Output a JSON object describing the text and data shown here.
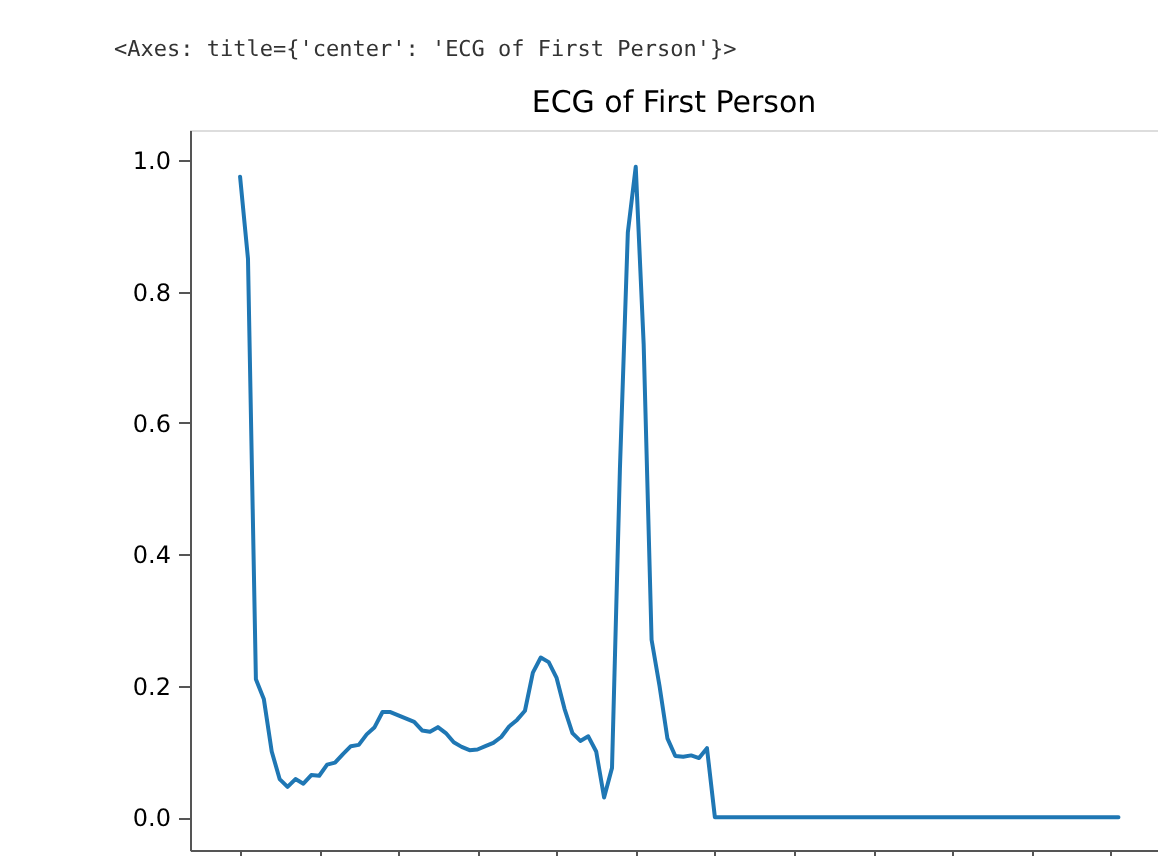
{
  "chart_data": {
    "type": "line",
    "title": "ECG of First Person",
    "annotations": [
      "<Axes: title={'center': 'ECG of First Person'}>"
    ],
    "categories": [
      null,
      null,
      null,
      null,
      null,
      null,
      null,
      null,
      null,
      null,
      null,
      null,
      null,
      null,
      null,
      null,
      null,
      null,
      null,
      null,
      null,
      null,
      null,
      null,
      null,
      null,
      null,
      null,
      null,
      null,
      null,
      null,
      null,
      null,
      null,
      null,
      null,
      null,
      null,
      null,
      null,
      null,
      null,
      null,
      null,
      null,
      null,
      null,
      null,
      null,
      null,
      null,
      null,
      null,
      null,
      null,
      null,
      null,
      null,
      null,
      null,
      null,
      null,
      null,
      null,
      null,
      null,
      null,
      null,
      null,
      null,
      null,
      null,
      null,
      null,
      null,
      null,
      null,
      null,
      null,
      null,
      null,
      null,
      null,
      null,
      null,
      null,
      null,
      null,
      null,
      null,
      null,
      null,
      null,
      null,
      null,
      null,
      null,
      null,
      null,
      null,
      null,
      null,
      null,
      null,
      null,
      null,
      null,
      null,
      null,
      null,
      null
    ],
    "series": [
      {
        "color": "#1f77b4",
        "values": [
          0.975,
          0.85,
          0.21,
          0.18,
          0.1,
          0.058,
          0.046,
          0.058,
          0.051,
          0.064,
          0.063,
          0.08,
          0.083,
          0.096,
          0.108,
          0.11,
          0.126,
          0.137,
          0.16,
          0.16,
          0.155,
          0.15,
          0.145,
          0.132,
          0.13,
          0.137,
          0.128,
          0.114,
          0.107,
          0.102,
          0.103,
          0.108,
          0.113,
          0.122,
          0.138,
          0.148,
          0.162,
          0.22,
          0.243,
          0.236,
          0.212,
          0.165,
          0.128,
          0.116,
          0.123,
          0.1,
          0.03,
          0.075,
          0.53,
          0.89,
          0.99,
          0.72,
          0.27,
          0.2,
          0.12,
          0.093,
          0.092,
          0.094,
          0.09,
          0.105,
          0.0,
          0,
          0,
          0,
          0,
          0,
          0,
          0,
          0,
          0,
          0,
          0,
          0,
          0,
          0,
          0,
          0,
          0,
          0,
          0,
          0,
          0,
          0,
          0,
          0,
          0,
          0,
          0,
          0,
          0,
          0,
          0,
          0,
          0,
          0,
          0,
          0,
          0,
          0,
          0,
          0,
          0,
          0,
          0,
          0,
          0,
          0,
          0,
          0,
          0,
          0,
          0
        ]
      }
    ],
    "ylim": [
      -0.05,
      1.046
    ],
    "yticks": [
      {
        "value": 0,
        "label": "0.0"
      },
      {
        "value": 0.2,
        "label": "0.2"
      },
      {
        "value": 0.4,
        "label": "0.4"
      },
      {
        "value": 0.6,
        "label": "0.6"
      },
      {
        "value": 0.8,
        "label": "0.8"
      },
      {
        "value": 1.0,
        "label": "1.0"
      }
    ],
    "tick_labels": "y",
    "grid": false,
    "marker": "none",
    "line_style": "solid"
  }
}
